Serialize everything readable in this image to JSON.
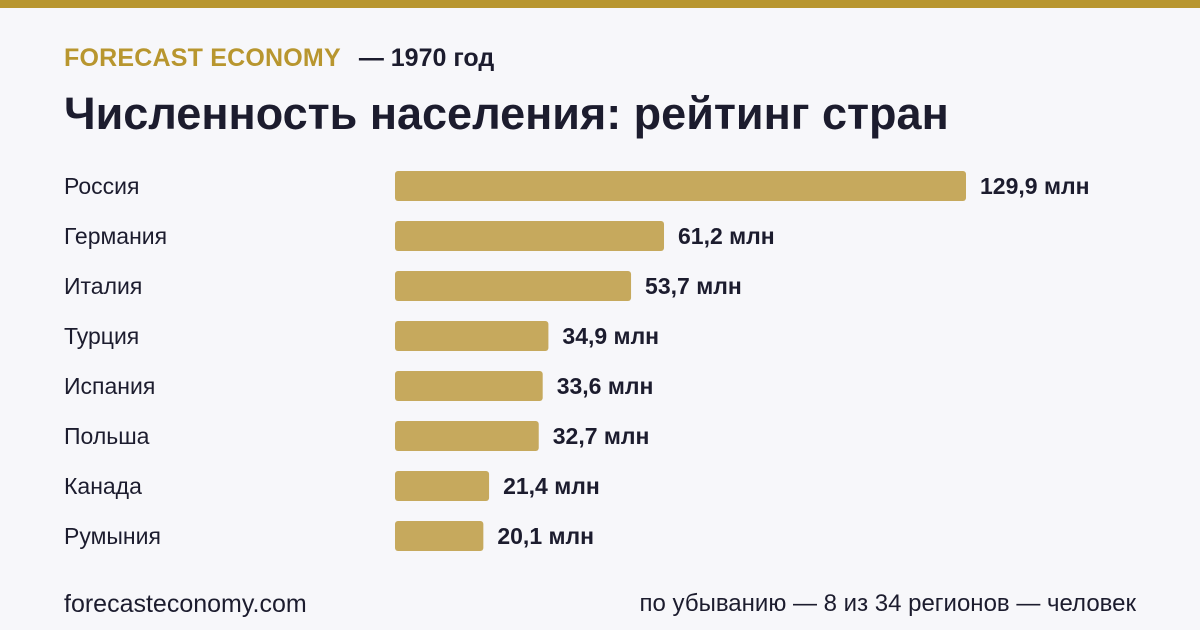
{
  "header": {
    "brand": "FORECAST ECONOMY",
    "year": "— 1970 год",
    "title": "Численность населения: рейтинг стран"
  },
  "footer": {
    "site": "forecasteconomy.com",
    "note": "по убыванию — 8 из 34 регионов — человек"
  },
  "colors": {
    "accent": "#b8962f",
    "bar": "#c6a95d",
    "text": "#1c1c2e",
    "background": "#f7f7fa"
  },
  "chart_data": {
    "type": "bar",
    "orientation": "horizontal",
    "categories": [
      "Россия",
      "Германия",
      "Италия",
      "Турция",
      "Испания",
      "Польша",
      "Канада",
      "Румыния"
    ],
    "values": [
      129.9,
      61.2,
      53.7,
      34.9,
      33.6,
      32.7,
      21.4,
      20.1
    ],
    "value_labels": [
      "129,9 млн",
      "61,2 млн",
      "53,7 млн",
      "34,9 млн",
      "33,6 млн",
      "32,7 млн",
      "21,4 млн",
      "20,1 млн"
    ],
    "grid": false,
    "legend": "none"
  }
}
